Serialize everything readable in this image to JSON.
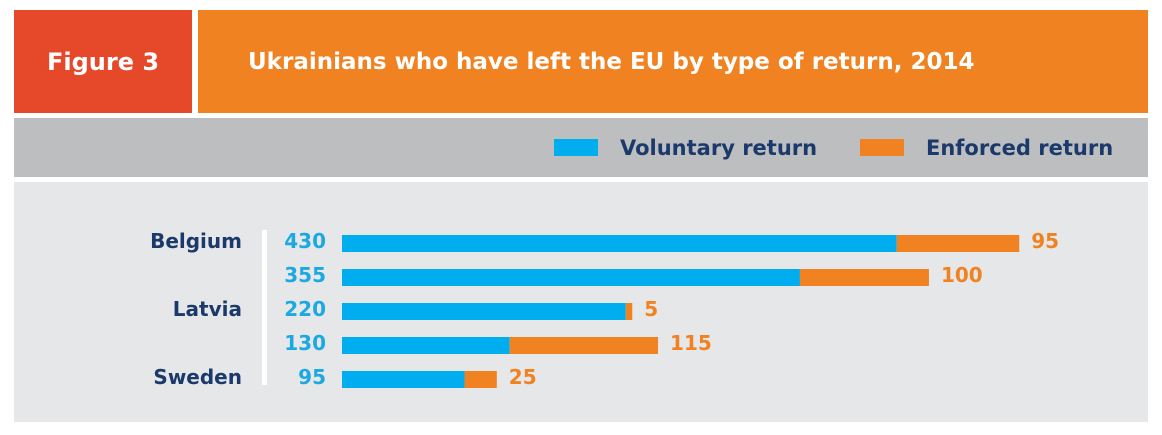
{
  "header": {
    "figure_label": "Figure 3",
    "title": "Ukrainians who have left the EU by type of return, 2014"
  },
  "legend": {
    "items": [
      {
        "label": "Voluntary return",
        "color": "#00aeef"
      },
      {
        "label": "Enforced return",
        "color": "#f08222"
      }
    ]
  },
  "colors": {
    "voluntary": "#00aeef",
    "enforced": "#f08222",
    "voluntary_text": "#1ca9e1",
    "country_text": "#1b3a6b"
  },
  "chart_data": {
    "type": "bar",
    "orientation": "horizontal",
    "stacked": true,
    "categories": [
      "Belgium",
      "",
      "Latvia",
      "",
      "Sweden"
    ],
    "series": [
      {
        "name": "Voluntary return",
        "values": [
          430,
          355,
          220,
          130,
          95
        ]
      },
      {
        "name": "Enforced return",
        "values": [
          95,
          100,
          5,
          115,
          25
        ]
      }
    ],
    "title": "Ukrainians who have left the EU by type of return, 2014",
    "legend_position": "top-right",
    "grid": false
  }
}
